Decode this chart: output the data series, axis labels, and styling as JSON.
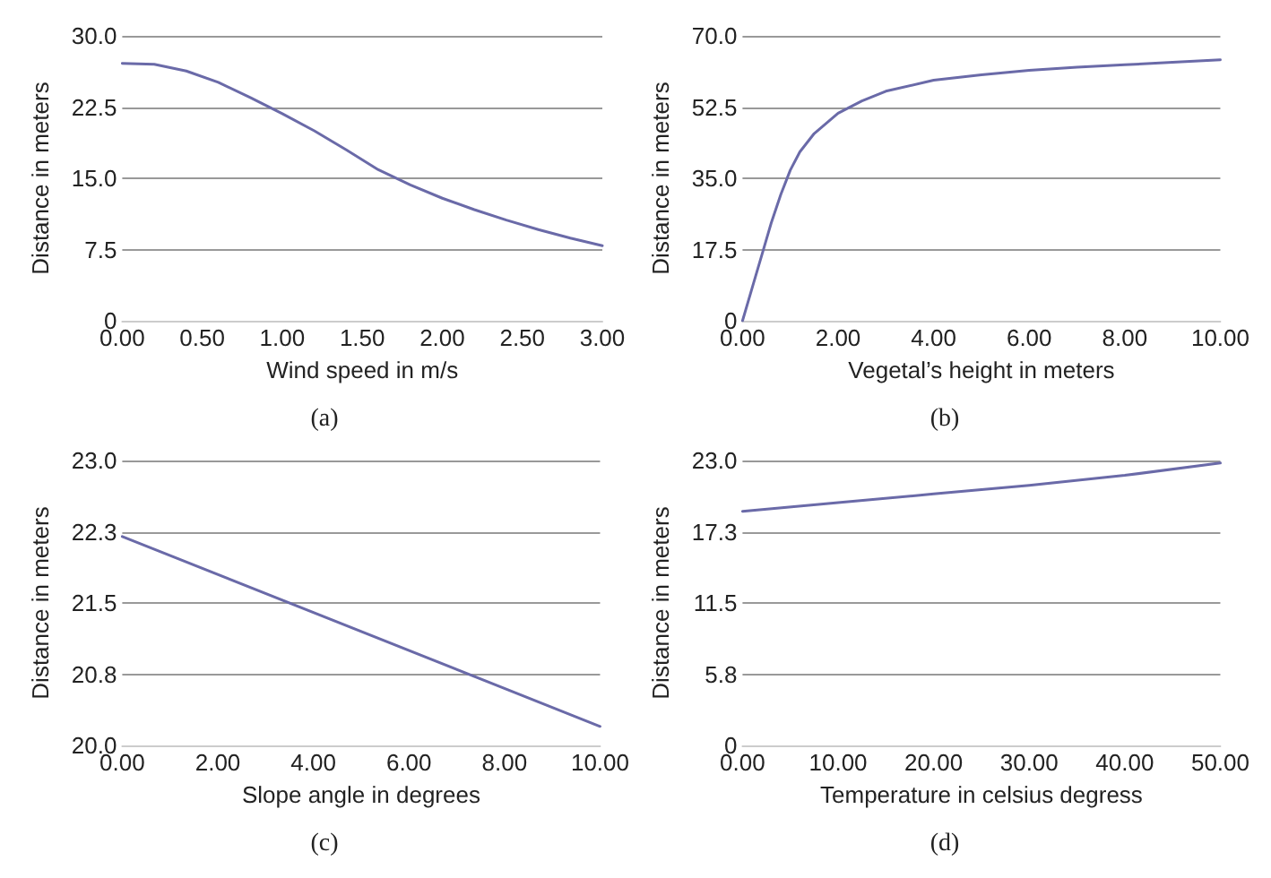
{
  "chart_data": [
    {
      "type": "line",
      "xlabel": "Wind speed in m/s",
      "ylabel": "Distance in meters",
      "annotations": [
        "(a)"
      ],
      "color": "#6a6aa8",
      "grid": "y",
      "x": [
        0,
        0.2,
        0.4,
        0.6,
        0.8,
        1.0,
        1.2,
        1.4,
        1.6,
        1.8,
        2.0,
        2.2,
        2.4,
        2.6,
        2.8,
        3.0
      ],
      "values": [
        27.1,
        27.0,
        26.3,
        25.1,
        23.5,
        21.8,
        20.0,
        18.0,
        15.9,
        14.3,
        12.9,
        11.7,
        10.6,
        9.6,
        8.7,
        7.9
      ],
      "xlim": [
        0,
        3
      ],
      "xticks": [
        {
          "value": 0,
          "label": "0.00"
        },
        {
          "value": 0.5,
          "label": "0.50"
        },
        {
          "value": 1,
          "label": "1.00"
        },
        {
          "value": 1.5,
          "label": "1.50"
        },
        {
          "value": 2,
          "label": "2.00"
        },
        {
          "value": 2.5,
          "label": "2.50"
        },
        {
          "value": 3,
          "label": "3.00"
        }
      ],
      "ylim": [
        0,
        30
      ],
      "yticks": [
        {
          "value": 0,
          "label": "0"
        },
        {
          "value": 7.5,
          "label": "7.5"
        },
        {
          "value": 15,
          "label": "15.0"
        },
        {
          "value": 22.5,
          "label": "22.5"
        },
        {
          "value": 30,
          "label": "30.0"
        }
      ]
    },
    {
      "type": "line",
      "xlabel": "Vegetal’s height in meters",
      "ylabel": "Distance in meters",
      "annotations": [
        "(b)"
      ],
      "color": "#6a6aa8",
      "grid": "y",
      "x": [
        0,
        0.2,
        0.4,
        0.6,
        0.8,
        1.0,
        1.2,
        1.5,
        2.0,
        2.5,
        3.0,
        4.0,
        5.0,
        6.0,
        7.0,
        8.0,
        9.0,
        10.0
      ],
      "values": [
        0,
        8,
        16,
        24,
        31,
        37,
        41.5,
        46,
        51,
        54,
        56.4,
        59.1,
        60.4,
        61.5,
        62.3,
        62.9,
        63.5,
        64.1
      ],
      "xlim": [
        0,
        10
      ],
      "xticks": [
        {
          "value": 0,
          "label": "0.00"
        },
        {
          "value": 2,
          "label": "2.00"
        },
        {
          "value": 4,
          "label": "4.00"
        },
        {
          "value": 6,
          "label": "6.00"
        },
        {
          "value": 8,
          "label": "8.00"
        },
        {
          "value": 10,
          "label": "10.00"
        }
      ],
      "ylim": [
        0,
        70
      ],
      "yticks": [
        {
          "value": 0,
          "label": "0"
        },
        {
          "value": 17.5,
          "label": "17.5"
        },
        {
          "value": 35,
          "label": "35.0"
        },
        {
          "value": 52.5,
          "label": "52.5"
        },
        {
          "value": 70,
          "label": "70.0"
        }
      ]
    },
    {
      "type": "line",
      "xlabel": "Slope angle in degrees",
      "ylabel": "Distance in meters",
      "annotations": [
        "(c)"
      ],
      "color": "#6a6aa8",
      "grid": "y",
      "x": [
        0,
        10
      ],
      "values": [
        22.2,
        20.2
      ],
      "xlim": [
        0,
        10
      ],
      "xticks": [
        {
          "value": 0,
          "label": "0.00"
        },
        {
          "value": 2,
          "label": "2.00"
        },
        {
          "value": 4,
          "label": "4.00"
        },
        {
          "value": 6,
          "label": "6.00"
        },
        {
          "value": 8,
          "label": "8.00"
        },
        {
          "value": 10,
          "label": "10.00"
        }
      ],
      "ylim": [
        20,
        23
      ],
      "yticks": [
        {
          "value": 20,
          "label": "20.0"
        },
        {
          "value": 20.75,
          "label": "20.8"
        },
        {
          "value": 21.5,
          "label": "21.5"
        },
        {
          "value": 22.25,
          "label": "22.3"
        },
        {
          "value": 23,
          "label": "23.0"
        }
      ]
    },
    {
      "type": "line",
      "xlabel": "Temperature in celsius degress",
      "ylabel": "Distance in meters",
      "annotations": [
        "(d)"
      ],
      "color": "#6a6aa8",
      "grid": "y",
      "x": [
        0,
        10,
        20,
        30,
        40,
        50
      ],
      "values": [
        18.9,
        19.6,
        20.3,
        21.0,
        21.8,
        22.8
      ],
      "xlim": [
        0,
        50
      ],
      "xticks": [
        {
          "value": 0,
          "label": "0.00"
        },
        {
          "value": 10,
          "label": "10.00"
        },
        {
          "value": 20,
          "label": "20.00"
        },
        {
          "value": 30,
          "label": "30.00"
        },
        {
          "value": 40,
          "label": "40.00"
        },
        {
          "value": 50,
          "label": "50.00"
        }
      ],
      "ylim": [
        0,
        23
      ],
      "yticks": [
        {
          "value": 0,
          "label": "0"
        },
        {
          "value": 5.75,
          "label": "5.8"
        },
        {
          "value": 11.5,
          "label": "11.5"
        },
        {
          "value": 17.25,
          "label": "17.3"
        },
        {
          "value": 23,
          "label": "23.0"
        }
      ]
    }
  ]
}
